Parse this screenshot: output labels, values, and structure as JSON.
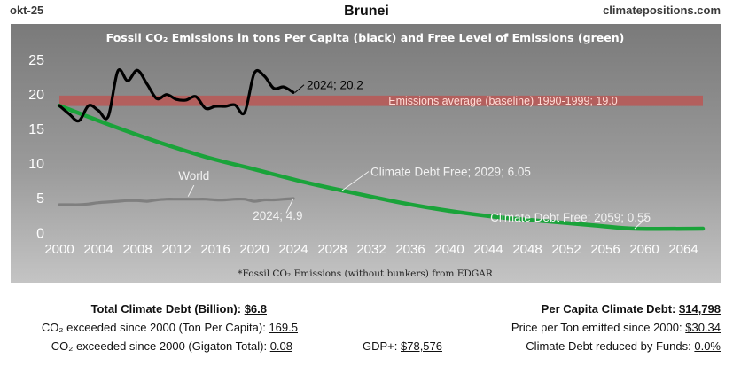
{
  "header": {
    "date": "okt-25",
    "title": "Brunei",
    "site": "climatepositions.com"
  },
  "chart_data": {
    "type": "line",
    "title": "Fossil CO₂ Emissions in tons Per Capita (black) and Free Level of Emissions (green)",
    "footnote": "*Fossil CO₂ Emissions (without bunkers) from EDGAR",
    "xlim": [
      2000,
      2066
    ],
    "ylim": [
      -1.5,
      26
    ],
    "x_ticks": [
      2000,
      2004,
      2008,
      2012,
      2016,
      2020,
      2024,
      2028,
      2032,
      2036,
      2040,
      2044,
      2048,
      2052,
      2056,
      2060,
      2064
    ],
    "y_ticks": [
      0,
      5,
      10,
      15,
      20,
      25
    ],
    "grid": false,
    "baseline": {
      "label": "Emissions average (baseline) 1990-1999; 19.0",
      "value": 19.0,
      "color": "#c0504d"
    },
    "series": [
      {
        "key": "brunei",
        "color": "#000000",
        "x": [
          2000,
          2001,
          2002,
          2003,
          2004,
          2005,
          2006,
          2007,
          2008,
          2009,
          2010,
          2011,
          2012,
          2013,
          2014,
          2015,
          2016,
          2017,
          2018,
          2019,
          2020,
          2021,
          2022,
          2023,
          2024
        ],
        "values": [
          18.3,
          17.1,
          16.1,
          18.3,
          17.6,
          16.7,
          23.3,
          21.9,
          23.4,
          21.4,
          19.3,
          19.9,
          19.2,
          19.1,
          19.6,
          17.9,
          18.2,
          18.2,
          18.4,
          17.3,
          23.0,
          22.6,
          20.8,
          21.0,
          20.2
        ]
      },
      {
        "key": "world",
        "name": "World",
        "color": "#7f7f7f",
        "x": [
          2000,
          2001,
          2002,
          2003,
          2004,
          2005,
          2006,
          2007,
          2008,
          2009,
          2010,
          2011,
          2012,
          2013,
          2014,
          2015,
          2016,
          2017,
          2018,
          2019,
          2020,
          2021,
          2022,
          2023,
          2024
        ],
        "values": [
          4.0,
          4.0,
          4.0,
          4.1,
          4.3,
          4.4,
          4.5,
          4.6,
          4.6,
          4.5,
          4.7,
          4.8,
          4.8,
          4.8,
          4.8,
          4.8,
          4.7,
          4.7,
          4.8,
          4.8,
          4.5,
          4.7,
          4.7,
          4.8,
          4.9
        ]
      },
      {
        "key": "free_level",
        "color": "#1aa33a",
        "x": [
          2000,
          2005,
          2010,
          2015,
          2020,
          2025,
          2029,
          2035,
          2040,
          2045,
          2050,
          2055,
          2059,
          2066
        ],
        "values": [
          18.3,
          15.6,
          13.1,
          10.9,
          9.1,
          7.3,
          6.05,
          4.3,
          3.1,
          2.2,
          1.6,
          1.0,
          0.55,
          0.55
        ]
      }
    ],
    "annotations": [
      {
        "text": "2024; 20.2",
        "x": 2024,
        "y": 20.2
      },
      {
        "text": "World",
        "x": 2016,
        "y": 4.8
      },
      {
        "text": "2024; 4.9",
        "x": 2024,
        "y": 4.9
      },
      {
        "text": "Climate Debt Free; 2029; 6.05",
        "x": 2029,
        "y": 6.05
      },
      {
        "text": "Climate Debt Free; 2059; 0.55",
        "x": 2059,
        "y": 0.55
      }
    ]
  },
  "stats": {
    "total_debt_label": "Total Climate Debt (Billion):",
    "total_debt_value": "$6.8",
    "exceeded_ton_label": "CO₂ exceeded since 2000 (Ton Per Capita):",
    "exceeded_ton_value": "169.5",
    "exceeded_gt_label": "CO₂ exceeded since 2000 (Gigaton Total):",
    "exceeded_gt_value": "0.08",
    "gdp_label": "GDP+:",
    "gdp_value": "$78,576",
    "per_capita_label": "Per Capita Climate Debt:",
    "per_capita_value": "$14,798",
    "price_label": "Price per Ton emitted since 2000:",
    "price_value": "$30.34",
    "funds_label": "Climate Debt reduced by Funds:",
    "funds_value": "0.0%"
  }
}
